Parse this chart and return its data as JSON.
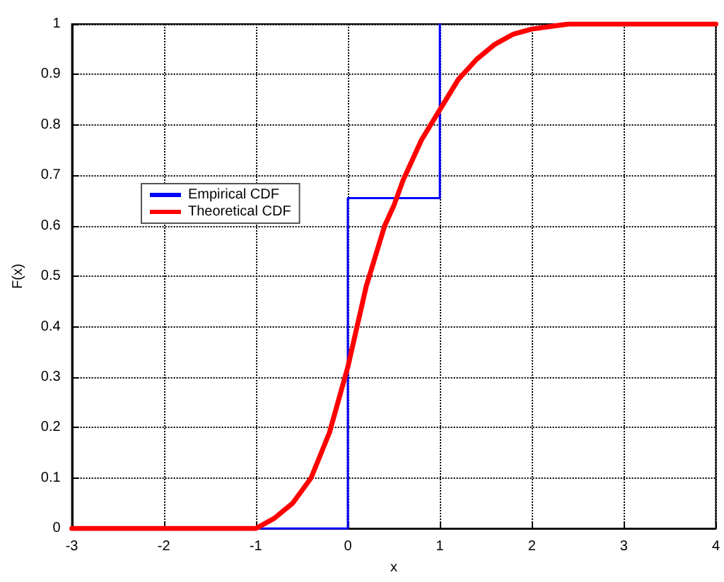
{
  "chart_data": {
    "type": "line",
    "xlabel": "x",
    "ylabel": "F(x)",
    "xlim": [
      -3,
      4
    ],
    "xticks": [
      -3,
      -2,
      -1,
      0,
      1,
      2,
      3,
      4
    ],
    "ylim": [
      0,
      1
    ],
    "yticks": [
      0,
      0.1,
      0.2,
      0.3,
      0.4,
      0.5,
      0.6,
      0.7,
      0.8,
      0.9,
      1
    ],
    "grid": true,
    "legend": "left",
    "marker": "none",
    "series": [
      {
        "name": "Empirical CDF",
        "type": "step",
        "color": "#0000ff",
        "x": [
          -3,
          0,
          1
        ],
        "values": [
          0,
          0.655,
          1
        ]
      },
      {
        "name": "Theoretical CDF",
        "type": "line",
        "color": "#ff0000",
        "x": [
          -3,
          -1,
          -0.8,
          -0.6,
          -0.4,
          -0.2,
          0,
          0.1,
          0.2,
          0.3,
          0.4,
          0.5,
          0.6,
          0.8,
          1,
          1.2,
          1.4,
          1.6,
          1.8,
          2,
          2.2,
          2.4,
          4
        ],
        "values": [
          0,
          0,
          0.02,
          0.05,
          0.1,
          0.19,
          0.32,
          0.4,
          0.48,
          0.54,
          0.6,
          0.64,
          0.69,
          0.77,
          0.83,
          0.89,
          0.93,
          0.96,
          0.98,
          0.99,
          0.995,
          1,
          1
        ]
      }
    ]
  }
}
